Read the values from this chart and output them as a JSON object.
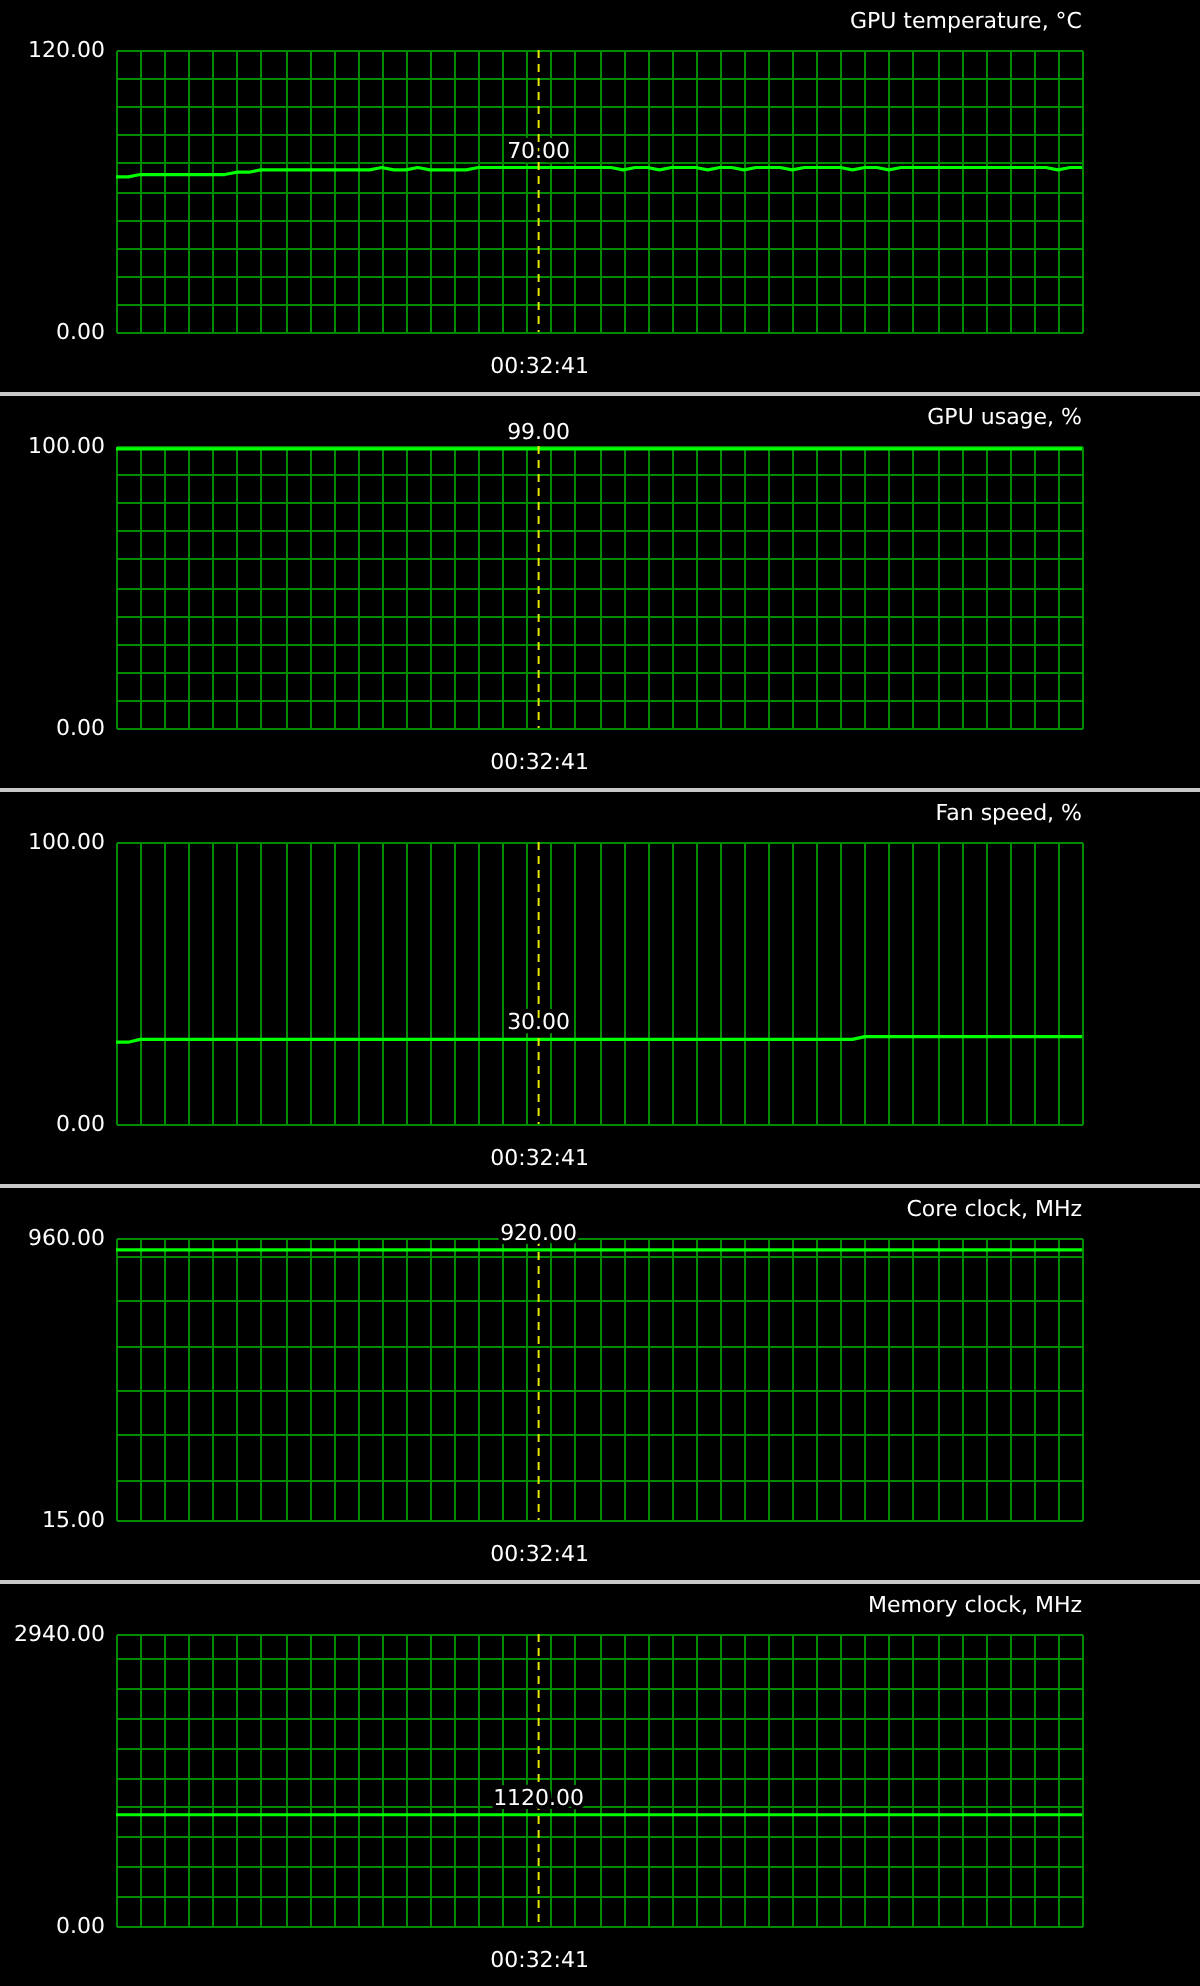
{
  "chart_data": [
    {
      "type": "line",
      "title": "GPU temperature, °C",
      "categories": [
        null,
        null,
        null,
        null,
        null,
        null,
        null,
        null,
        null,
        null,
        null,
        null,
        null,
        null,
        null,
        null,
        null,
        null,
        null,
        null,
        null,
        null,
        null,
        null,
        null,
        null,
        null,
        null,
        null,
        null,
        null,
        null,
        null,
        null,
        null,
        "00:32:41",
        null,
        null,
        null,
        null,
        null,
        null,
        null,
        null,
        null,
        null,
        null,
        null,
        null,
        null,
        null,
        null,
        null,
        null,
        null,
        null,
        null,
        null,
        null,
        null,
        null,
        null,
        null,
        null,
        null,
        null,
        null,
        null,
        null,
        null,
        null,
        null,
        null,
        null,
        null,
        null,
        null,
        null,
        null,
        null,
        null
      ],
      "series": [
        {
          "color": "#00ff00",
          "values": [
            66,
            66,
            67,
            67,
            67,
            67,
            67,
            67,
            67,
            67,
            68,
            68,
            69,
            69,
            69,
            69,
            69,
            69,
            69,
            69,
            69,
            69,
            70,
            69,
            69,
            70,
            69,
            69,
            69,
            69,
            70,
            70,
            70,
            70,
            70,
            70,
            70,
            70,
            70,
            70,
            70,
            70,
            69,
            70,
            70,
            69,
            70,
            70,
            70,
            69,
            70,
            70,
            69,
            70,
            70,
            70,
            69,
            70,
            70,
            70,
            70,
            69,
            70,
            70,
            69,
            70,
            70,
            70,
            70,
            70,
            70,
            70,
            70,
            70,
            70,
            70,
            70,
            70,
            69,
            70,
            70
          ]
        }
      ],
      "ylim": [
        0,
        120
      ],
      "yticks": [
        {
          "value": 0,
          "label": "0.00"
        },
        {
          "value": 12,
          "label": null
        },
        {
          "value": 24,
          "label": null
        },
        {
          "value": 36,
          "label": null
        },
        {
          "value": 48,
          "label": null
        },
        {
          "value": 60,
          "label": null
        },
        {
          "value": 72,
          "label": null
        },
        {
          "value": 84,
          "label": null
        },
        {
          "value": 96,
          "label": null
        },
        {
          "value": 108,
          "label": null
        },
        {
          "value": 120,
          "label": "120.00"
        }
      ],
      "grid": true,
      "ref_lines": [
        {
          "axis": "x",
          "value": "00:32:41",
          "color": "#e8e800",
          "line_style": "dashed"
        }
      ],
      "annotations": [
        {
          "text": "70.00",
          "x": "00:32:41",
          "y": 70
        }
      ]
    },
    {
      "type": "line",
      "title": "GPU usage, %",
      "categories": [
        null,
        null,
        null,
        null,
        null,
        null,
        null,
        null,
        null,
        null,
        null,
        null,
        null,
        null,
        null,
        null,
        null,
        null,
        null,
        null,
        null,
        null,
        null,
        null,
        null,
        null,
        null,
        null,
        null,
        null,
        null,
        null,
        null,
        null,
        null,
        "00:32:41",
        null,
        null,
        null,
        null,
        null,
        null,
        null,
        null,
        null,
        null,
        null,
        null,
        null,
        null,
        null,
        null,
        null,
        null,
        null,
        null,
        null,
        null,
        null,
        null,
        null,
        null,
        null,
        null,
        null,
        null,
        null,
        null,
        null,
        null,
        null,
        null,
        null,
        null,
        null,
        null,
        null,
        null,
        null,
        null,
        null
      ],
      "series": [
        {
          "color": "#00ff00",
          "values": [
            99,
            99,
            99,
            99,
            99,
            99,
            99,
            99,
            99,
            99,
            99,
            99,
            99,
            99,
            99,
            99,
            99,
            99,
            99,
            99,
            99,
            99,
            99,
            99,
            99,
            99,
            99,
            99,
            99,
            99,
            99,
            99,
            99,
            99,
            99,
            99,
            99,
            99,
            99,
            99,
            99,
            99,
            99,
            99,
            99,
            99,
            99,
            99,
            99,
            99,
            99,
            99,
            99,
            99,
            99,
            99,
            99,
            99,
            99,
            99,
            99,
            99,
            99,
            99,
            99,
            99,
            99,
            99,
            99,
            99,
            99,
            99,
            99,
            99,
            99,
            99,
            99,
            99,
            99,
            99,
            99
          ]
        }
      ],
      "ylim": [
        0,
        100
      ],
      "yticks": [
        {
          "value": 0,
          "label": "0.00"
        },
        {
          "value": 10,
          "label": null
        },
        {
          "value": 20,
          "label": null
        },
        {
          "value": 30,
          "label": null
        },
        {
          "value": 40,
          "label": null
        },
        {
          "value": 50,
          "label": null
        },
        {
          "value": 60,
          "label": null
        },
        {
          "value": 70,
          "label": null
        },
        {
          "value": 80,
          "label": null
        },
        {
          "value": 90,
          "label": null
        },
        {
          "value": 100,
          "label": "100.00"
        }
      ],
      "grid": true,
      "ref_lines": [
        {
          "axis": "x",
          "value": "00:32:41",
          "color": "#e8e800",
          "line_style": "dashed"
        }
      ],
      "annotations": [
        {
          "text": "99.00",
          "x": "00:32:41",
          "y": 99
        }
      ]
    },
    {
      "type": "line",
      "title": "Fan speed, %",
      "categories": [
        null,
        null,
        null,
        null,
        null,
        null,
        null,
        null,
        null,
        null,
        null,
        null,
        null,
        null,
        null,
        null,
        null,
        null,
        null,
        null,
        null,
        null,
        null,
        null,
        null,
        null,
        null,
        null,
        null,
        null,
        null,
        null,
        null,
        null,
        null,
        "00:32:41",
        null,
        null,
        null,
        null,
        null,
        null,
        null,
        null,
        null,
        null,
        null,
        null,
        null,
        null,
        null,
        null,
        null,
        null,
        null,
        null,
        null,
        null,
        null,
        null,
        null,
        null,
        null,
        null,
        null,
        null,
        null,
        null,
        null,
        null,
        null,
        null,
        null,
        null,
        null,
        null,
        null,
        null,
        null,
        null,
        null
      ],
      "series": [
        {
          "color": "#00ff00",
          "values": [
            29,
            29,
            30,
            30,
            30,
            30,
            30,
            30,
            30,
            30,
            30,
            30,
            30,
            30,
            30,
            30,
            30,
            30,
            30,
            30,
            30,
            30,
            30,
            30,
            30,
            30,
            30,
            30,
            30,
            30,
            30,
            30,
            30,
            30,
            30,
            30,
            30,
            30,
            30,
            30,
            30,
            30,
            30,
            30,
            30,
            30,
            30,
            30,
            30,
            30,
            30,
            30,
            30,
            30,
            30,
            30,
            30,
            30,
            30,
            30,
            30,
            30,
            31,
            31,
            31,
            31,
            31,
            31,
            31,
            31,
            31,
            31,
            31,
            31,
            31,
            31,
            31,
            31,
            31,
            31,
            31
          ]
        }
      ],
      "ylim": [
        0,
        100
      ],
      "yticks": [
        {
          "value": 0,
          "label": "0.00"
        },
        {
          "value": 100,
          "label": "100.00"
        }
      ],
      "grid": true,
      "ref_lines": [
        {
          "axis": "x",
          "value": "00:32:41",
          "color": "#e8e800",
          "line_style": "dashed"
        }
      ],
      "annotations": [
        {
          "text": "30.00",
          "x": "00:32:41",
          "y": 30
        }
      ]
    },
    {
      "type": "line",
      "title": "Core clock, MHz",
      "categories": [
        null,
        null,
        null,
        null,
        null,
        null,
        null,
        null,
        null,
        null,
        null,
        null,
        null,
        null,
        null,
        null,
        null,
        null,
        null,
        null,
        null,
        null,
        null,
        null,
        null,
        null,
        null,
        null,
        null,
        null,
        null,
        null,
        null,
        null,
        null,
        "00:32:41",
        null,
        null,
        null,
        null,
        null,
        null,
        null,
        null,
        null,
        null,
        null,
        null,
        null,
        null,
        null,
        null,
        null,
        null,
        null,
        null,
        null,
        null,
        null,
        null,
        null,
        null,
        null,
        null,
        null,
        null,
        null,
        null,
        null,
        null,
        null,
        null,
        null,
        null,
        null,
        null,
        null,
        null,
        null,
        null,
        null
      ],
      "series": [
        {
          "color": "#00ff00",
          "values": [
            920,
            920,
            920,
            920,
            920,
            920,
            920,
            920,
            920,
            920,
            920,
            920,
            920,
            920,
            920,
            920,
            920,
            920,
            920,
            920,
            920,
            920,
            920,
            920,
            920,
            920,
            920,
            920,
            920,
            920,
            920,
            920,
            920,
            920,
            920,
            920,
            920,
            920,
            920,
            920,
            920,
            920,
            920,
            920,
            920,
            920,
            920,
            920,
            920,
            920,
            920,
            920,
            920,
            920,
            920,
            920,
            920,
            920,
            920,
            920,
            920,
            920,
            920,
            920,
            920,
            920,
            920,
            920,
            920,
            920,
            920,
            920,
            920,
            920,
            920,
            920,
            920,
            920,
            920,
            920,
            920
          ]
        }
      ],
      "ylim": [
        15,
        960
      ],
      "yticks": [
        {
          "value": 15,
          "label": "15.00"
        },
        {
          "value": 150,
          "label": null
        },
        {
          "value": 300,
          "label": null
        },
        {
          "value": 450,
          "label": null
        },
        {
          "value": 600,
          "label": null
        },
        {
          "value": 750,
          "label": null
        },
        {
          "value": 900,
          "label": null
        },
        {
          "value": 960,
          "label": "960.00"
        }
      ],
      "grid": true,
      "ref_lines": [
        {
          "axis": "x",
          "value": "00:32:41",
          "color": "#e8e800",
          "line_style": "dashed"
        }
      ],
      "annotations": [
        {
          "text": "920.00",
          "x": "00:32:41",
          "y": 920
        }
      ]
    },
    {
      "type": "line",
      "title": "Memory clock, MHz",
      "categories": [
        null,
        null,
        null,
        null,
        null,
        null,
        null,
        null,
        null,
        null,
        null,
        null,
        null,
        null,
        null,
        null,
        null,
        null,
        null,
        null,
        null,
        null,
        null,
        null,
        null,
        null,
        null,
        null,
        null,
        null,
        null,
        null,
        null,
        null,
        null,
        "00:32:41",
        null,
        null,
        null,
        null,
        null,
        null,
        null,
        null,
        null,
        null,
        null,
        null,
        null,
        null,
        null,
        null,
        null,
        null,
        null,
        null,
        null,
        null,
        null,
        null,
        null,
        null,
        null,
        null,
        null,
        null,
        null,
        null,
        null,
        null,
        null,
        null,
        null,
        null,
        null,
        null,
        null,
        null,
        null,
        null,
        null
      ],
      "series": [
        {
          "color": "#00ff00",
          "values": [
            1120,
            1120,
            1120,
            1120,
            1120,
            1120,
            1120,
            1120,
            1120,
            1120,
            1120,
            1120,
            1120,
            1120,
            1120,
            1120,
            1120,
            1120,
            1120,
            1120,
            1120,
            1120,
            1120,
            1120,
            1120,
            1120,
            1120,
            1120,
            1120,
            1120,
            1120,
            1120,
            1120,
            1120,
            1120,
            1120,
            1120,
            1120,
            1120,
            1120,
            1120,
            1120,
            1120,
            1120,
            1120,
            1120,
            1120,
            1120,
            1120,
            1120,
            1120,
            1120,
            1120,
            1120,
            1120,
            1120,
            1120,
            1120,
            1120,
            1120,
            1120,
            1120,
            1120,
            1120,
            1120,
            1120,
            1120,
            1120,
            1120,
            1120,
            1120,
            1120,
            1120,
            1120,
            1120,
            1120,
            1120,
            1120,
            1120,
            1120,
            1120
          ]
        }
      ],
      "ylim": [
        0,
        2940
      ],
      "yticks": [
        {
          "value": 0,
          "label": "0.00"
        },
        {
          "value": 300,
          "label": null
        },
        {
          "value": 600,
          "label": null
        },
        {
          "value": 900,
          "label": null
        },
        {
          "value": 1200,
          "label": null
        },
        {
          "value": 1500,
          "label": null
        },
        {
          "value": 1800,
          "label": null
        },
        {
          "value": 2100,
          "label": null
        },
        {
          "value": 2400,
          "label": null
        },
        {
          "value": 2700,
          "label": null
        },
        {
          "value": 2940,
          "label": "2940.00"
        }
      ],
      "grid": true,
      "ref_lines": [
        {
          "axis": "x",
          "value": "00:32:41",
          "color": "#e8e800",
          "line_style": "dashed"
        }
      ],
      "annotations": [
        {
          "text": "1120.00",
          "x": "00:32:41",
          "y": 1120
        }
      ]
    }
  ]
}
